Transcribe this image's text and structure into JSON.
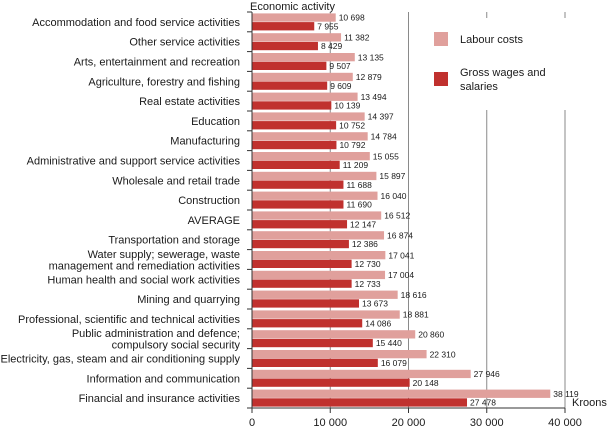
{
  "chart_data": {
    "type": "bar",
    "orientation": "horizontal",
    "title": "",
    "ylabel": "Economic activity",
    "xlabel": "Kroons",
    "xlim": [
      0,
      40000
    ],
    "xticks": [
      0,
      10000,
      20000,
      30000,
      40000
    ],
    "xtick_labels": [
      "0",
      "10 000",
      "20 000",
      "30 000",
      "40 000"
    ],
    "grid": "vertical",
    "legend_position": "top-right",
    "categories": [
      "Accommodation and food service activities",
      "Other service activities",
      "Arts, entertainment and recreation",
      "Agriculture, forestry and fishing",
      "Real estate activities",
      "Education",
      "Manufacturing",
      "Administrative and support service activities",
      "Wholesale and retail trade",
      "Construction",
      "AVERAGE",
      "Transportation and storage",
      "Water supply; sewerage, waste\nmanagement and remediation activities",
      "Human health and social work activities",
      "Mining and quarrying",
      "Professional, scientific and technical activities",
      "Public administration and defence;\ncompulsory social security",
      "Electricity, gas, steam and air conditioning supply",
      "Information and communication",
      "Financial and insurance activities"
    ],
    "series": [
      {
        "name": "Labour costs",
        "color": "#e0a09c",
        "values": [
          10698,
          11382,
          13135,
          12879,
          13494,
          14397,
          14784,
          15055,
          15897,
          16040,
          16512,
          16874,
          17041,
          17004,
          18616,
          18881,
          20860,
          22310,
          27946,
          38119
        ],
        "labels": [
          "10 698",
          "11 382",
          "13 135",
          "12 879",
          "13 494",
          "14 397",
          "14 784",
          "15 055",
          "15 897",
          "16 040",
          "16 512",
          "16 874",
          "17 041",
          "17 004",
          "18 616",
          "18 881",
          "20 860",
          "22 310",
          "27 946",
          "38 119"
        ]
      },
      {
        "name": "Gross wages and\nsalaries",
        "color": "#c0312e",
        "values": [
          7955,
          8429,
          9507,
          9609,
          10139,
          10752,
          10792,
          11209,
          11688,
          11690,
          12147,
          12386,
          12730,
          12733,
          13673,
          14086,
          15440,
          16079,
          20148,
          27478
        ],
        "labels": [
          "7 955",
          "8 429",
          "9 507",
          "9 609",
          "10 139",
          "10 752",
          "10 792",
          "11 209",
          "11 688",
          "11 690",
          "12 147",
          "12 386",
          "12 730",
          "12 733",
          "13 673",
          "14 086",
          "15 440",
          "16 079",
          "20 148",
          "27 478"
        ]
      }
    ]
  }
}
